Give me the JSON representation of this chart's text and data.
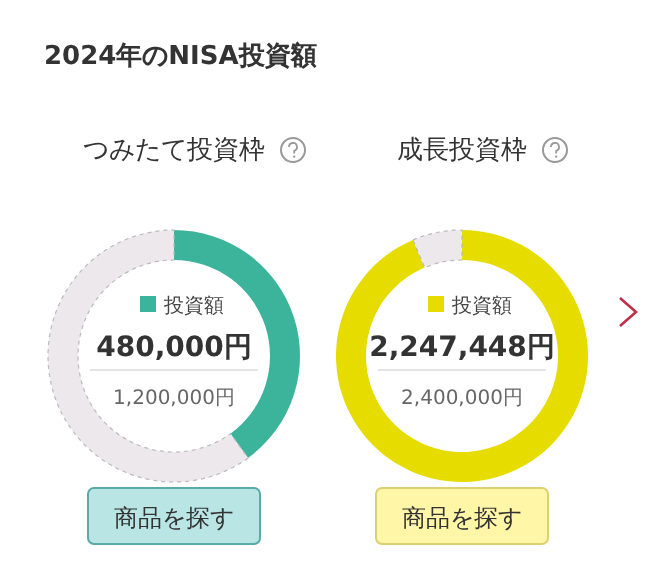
{
  "chart_data": [
    {
      "type": "other",
      "title": "2024年のNISA投資額"
    },
    {
      "type": "donut",
      "title": "つみたて投資枠",
      "categories": [
        "投資額",
        null
      ],
      "values": [
        480000,
        720000
      ],
      "colors": [
        "#3cb49c",
        "#ece8ec"
      ],
      "value_labels": [
        "480,000円",
        null
      ],
      "legend": "center",
      "annotations": [
        "1,200,000円",
        "商品を探す"
      ]
    },
    {
      "type": "donut",
      "title": "成長投資枠",
      "categories": [
        "投資額",
        null
      ],
      "values": [
        2247448,
        152552
      ],
      "colors": [
        "#e6dc00",
        "#ece8ec"
      ],
      "value_labels": [
        "2,247,448円",
        null
      ],
      "legend": "center",
      "annotations": [
        "2,400,000円",
        "商品を探す"
      ]
    }
  ]
}
